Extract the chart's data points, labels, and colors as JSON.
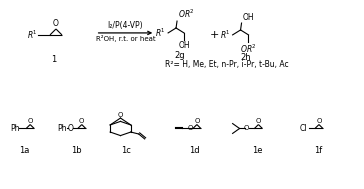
{
  "background_color": "#ffffff",
  "arrow_text_top": "I₂/P(4-VP)",
  "arrow_text_bottom": "R²OH, r.t. or heat",
  "product1_label": "2g",
  "product2_label": "2h",
  "reagent_label": "1",
  "r2_text": "R²= H, Me, Et, n-Pr, i-Pr, t-Bu, Ac",
  "bottom_labels": [
    "1a",
    "1b",
    "1c",
    "1d",
    "1e",
    "1f"
  ],
  "figsize": [
    3.64,
    1.89
  ],
  "dpi": 100
}
